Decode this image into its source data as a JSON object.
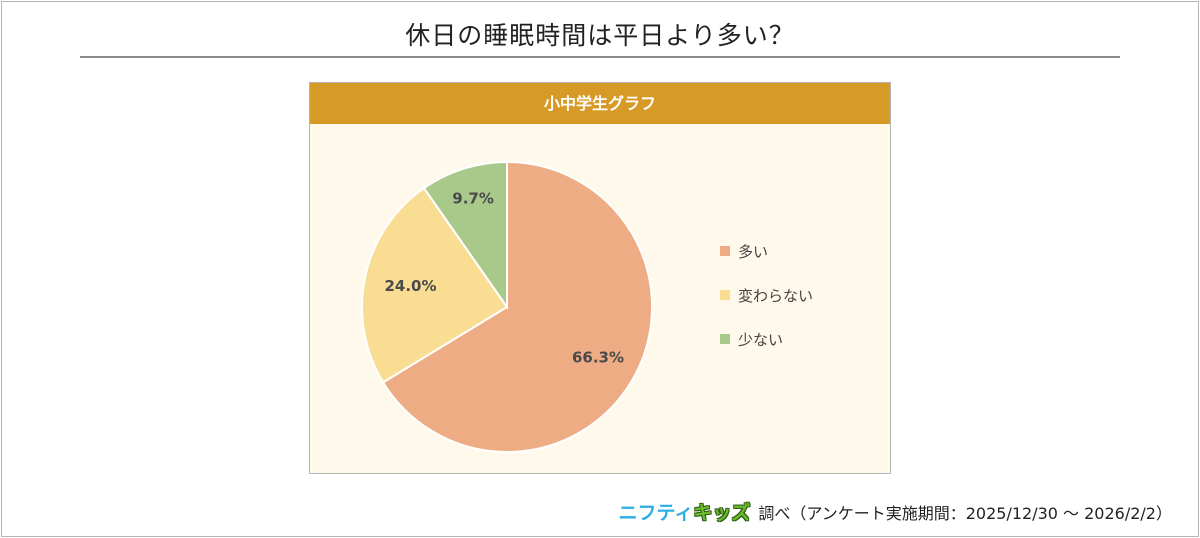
{
  "page_title": "休日の睡眠時間は平日より多い？",
  "chart_data": {
    "type": "pie",
    "title": "小中学生グラフ",
    "slices": [
      {
        "label": "多い",
        "value": 66.3,
        "value_label": "66.3%",
        "color": "#eeac84"
      },
      {
        "label": "変わらない",
        "value": 24.0,
        "value_label": "24.0%",
        "color": "#f8dd93"
      },
      {
        "label": "少ない",
        "value": 9.7,
        "value_label": "9.7%",
        "color": "#a9c98a"
      }
    ],
    "legend_position": "right"
  },
  "footer": {
    "logo_part1": "ニフティ",
    "logo_part2": "キッズ",
    "note": "調べ（アンケート実施期間：2025/12/30 ～ 2026/2/2）"
  },
  "colors": {
    "header_bg": "#d89a26",
    "panel_bg": "#fff9ec",
    "logo_blue": "#29aee6",
    "logo_green": "#6dbb2f"
  }
}
